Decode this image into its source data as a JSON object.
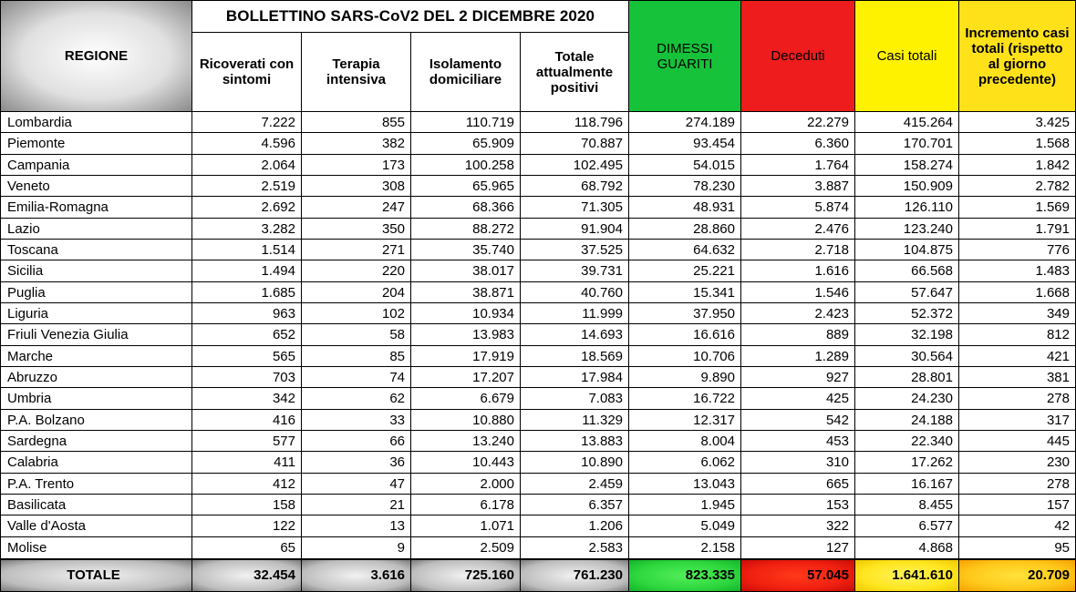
{
  "title": "BOLLETTINO SARS-CoV2 DEL 2 DICEMBRE 2020",
  "headers": {
    "regione": "REGIONE",
    "ricoverati": [
      "Ricoverati con",
      "sintomi"
    ],
    "terapia": [
      "Terapia",
      "intensiva"
    ],
    "isolamento": [
      "Isolamento",
      "domiciliare"
    ],
    "positivi": [
      "Totale",
      "attualmente",
      "positivi"
    ],
    "dimessi": [
      "DIMESSI",
      "GUARITI"
    ],
    "deceduti": [
      "Deceduti"
    ],
    "casi": [
      "Casi totali"
    ],
    "incremento": [
      "Incremento casi",
      "totali (rispetto",
      "al giorno",
      "precedente)"
    ]
  },
  "colors": {
    "green": "#16c23a",
    "red": "#ee1c1c",
    "yellow": "#fff200",
    "orange": "#ffc81a",
    "gray": "#8c8c8c"
  },
  "rows": [
    [
      "Lombardia",
      "7.222",
      "855",
      "110.719",
      "118.796",
      "274.189",
      "22.279",
      "415.264",
      "3.425"
    ],
    [
      "Piemonte",
      "4.596",
      "382",
      "65.909",
      "70.887",
      "93.454",
      "6.360",
      "170.701",
      "1.568"
    ],
    [
      "Campania",
      "2.064",
      "173",
      "100.258",
      "102.495",
      "54.015",
      "1.764",
      "158.274",
      "1.842"
    ],
    [
      "Veneto",
      "2.519",
      "308",
      "65.965",
      "68.792",
      "78.230",
      "3.887",
      "150.909",
      "2.782"
    ],
    [
      "Emilia-Romagna",
      "2.692",
      "247",
      "68.366",
      "71.305",
      "48.931",
      "5.874",
      "126.110",
      "1.569"
    ],
    [
      "Lazio",
      "3.282",
      "350",
      "88.272",
      "91.904",
      "28.860",
      "2.476",
      "123.240",
      "1.791"
    ],
    [
      "Toscana",
      "1.514",
      "271",
      "35.740",
      "37.525",
      "64.632",
      "2.718",
      "104.875",
      "776"
    ],
    [
      "Sicilia",
      "1.494",
      "220",
      "38.017",
      "39.731",
      "25.221",
      "1.616",
      "66.568",
      "1.483"
    ],
    [
      "Puglia",
      "1.685",
      "204",
      "38.871",
      "40.760",
      "15.341",
      "1.546",
      "57.647",
      "1.668"
    ],
    [
      "Liguria",
      "963",
      "102",
      "10.934",
      "11.999",
      "37.950",
      "2.423",
      "52.372",
      "349"
    ],
    [
      "Friuli Venezia Giulia",
      "652",
      "58",
      "13.983",
      "14.693",
      "16.616",
      "889",
      "32.198",
      "812"
    ],
    [
      "Marche",
      "565",
      "85",
      "17.919",
      "18.569",
      "10.706",
      "1.289",
      "30.564",
      "421"
    ],
    [
      "Abruzzo",
      "703",
      "74",
      "17.207",
      "17.984",
      "9.890",
      "927",
      "28.801",
      "381"
    ],
    [
      "Umbria",
      "342",
      "62",
      "6.679",
      "7.083",
      "16.722",
      "425",
      "24.230",
      "278"
    ],
    [
      "P.A. Bolzano",
      "416",
      "33",
      "10.880",
      "11.329",
      "12.317",
      "542",
      "24.188",
      "317"
    ],
    [
      "Sardegna",
      "577",
      "66",
      "13.240",
      "13.883",
      "8.004",
      "453",
      "22.340",
      "445"
    ],
    [
      "Calabria",
      "411",
      "36",
      "10.443",
      "10.890",
      "6.062",
      "310",
      "17.262",
      "230"
    ],
    [
      "P.A. Trento",
      "412",
      "47",
      "2.000",
      "2.459",
      "13.043",
      "665",
      "16.167",
      "278"
    ],
    [
      "Basilicata",
      "158",
      "21",
      "6.178",
      "6.357",
      "1.945",
      "153",
      "8.455",
      "157"
    ],
    [
      "Valle d'Aosta",
      "122",
      "13",
      "1.071",
      "1.206",
      "5.049",
      "322",
      "6.577",
      "42"
    ],
    [
      "Molise",
      "65",
      "9",
      "2.509",
      "2.583",
      "2.158",
      "127",
      "4.868",
      "95"
    ]
  ],
  "totals": [
    "TOTALE",
    "32.454",
    "3.616",
    "725.160",
    "761.230",
    "823.335",
    "57.045",
    "1.641.610",
    "20.709"
  ]
}
